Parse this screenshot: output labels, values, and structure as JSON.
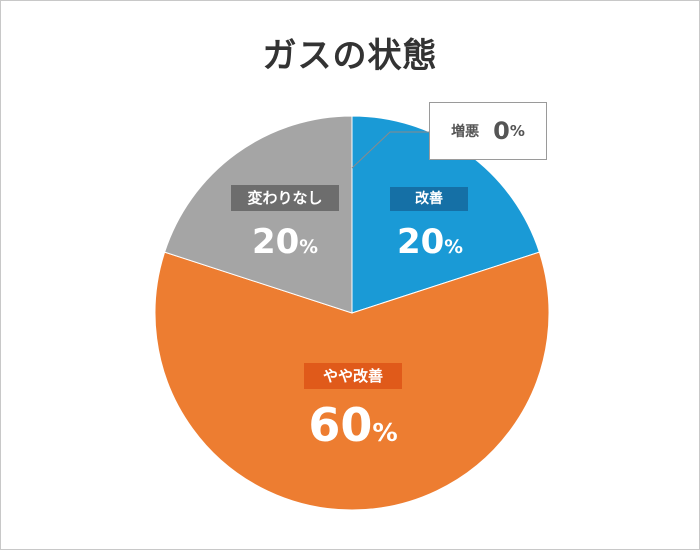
{
  "chart_data": {
    "type": "pie",
    "title": "ガスの状態",
    "unit": "%",
    "slices": [
      {
        "label": "増悪",
        "value": 0,
        "color": "#ffffff"
      },
      {
        "label": "改善",
        "value": 20,
        "color": "#1a9ad6"
      },
      {
        "label": "やや改善",
        "value": 60,
        "color": "#ed7d31"
      },
      {
        "label": "変わりなし",
        "value": 20,
        "color": "#a5a5a5"
      }
    ],
    "label_bg_colors": {
      "改善": "#1570a6",
      "やや改善": "#e05a1a",
      "変わりなし": "#6d6d6d"
    },
    "display": {
      "zero_value": "0",
      "improved_value": "20",
      "slight_value": "60",
      "unchanged_value": "20"
    }
  }
}
